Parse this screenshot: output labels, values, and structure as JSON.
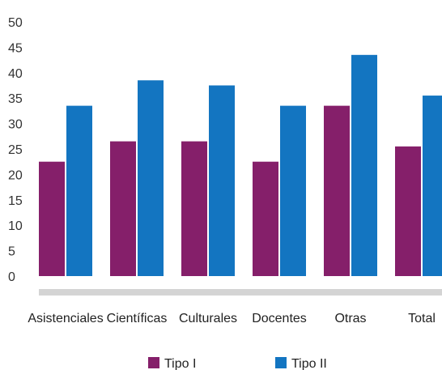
{
  "chart_data": {
    "type": "bar",
    "categories": [
      "Asistenciales",
      "Científicas",
      "Culturales",
      "Docentes",
      "Otras",
      "Total"
    ],
    "series": [
      {
        "name": "Tipo I",
        "color": "#851f6a",
        "values": [
          22.5,
          26.5,
          26.5,
          22.5,
          33.5,
          25.5
        ]
      },
      {
        "name": "Tipo II",
        "color": "#1375c1",
        "values": [
          33.5,
          38.5,
          37.5,
          33.5,
          43.5,
          35.5
        ]
      }
    ],
    "yticks": [
      0,
      5,
      10,
      15,
      20,
      25,
      30,
      35,
      40,
      45,
      50
    ],
    "ylim": [
      0,
      50
    ],
    "grid": false,
    "legend_position": "bottom",
    "baseline_color": "#d4d4d4"
  }
}
